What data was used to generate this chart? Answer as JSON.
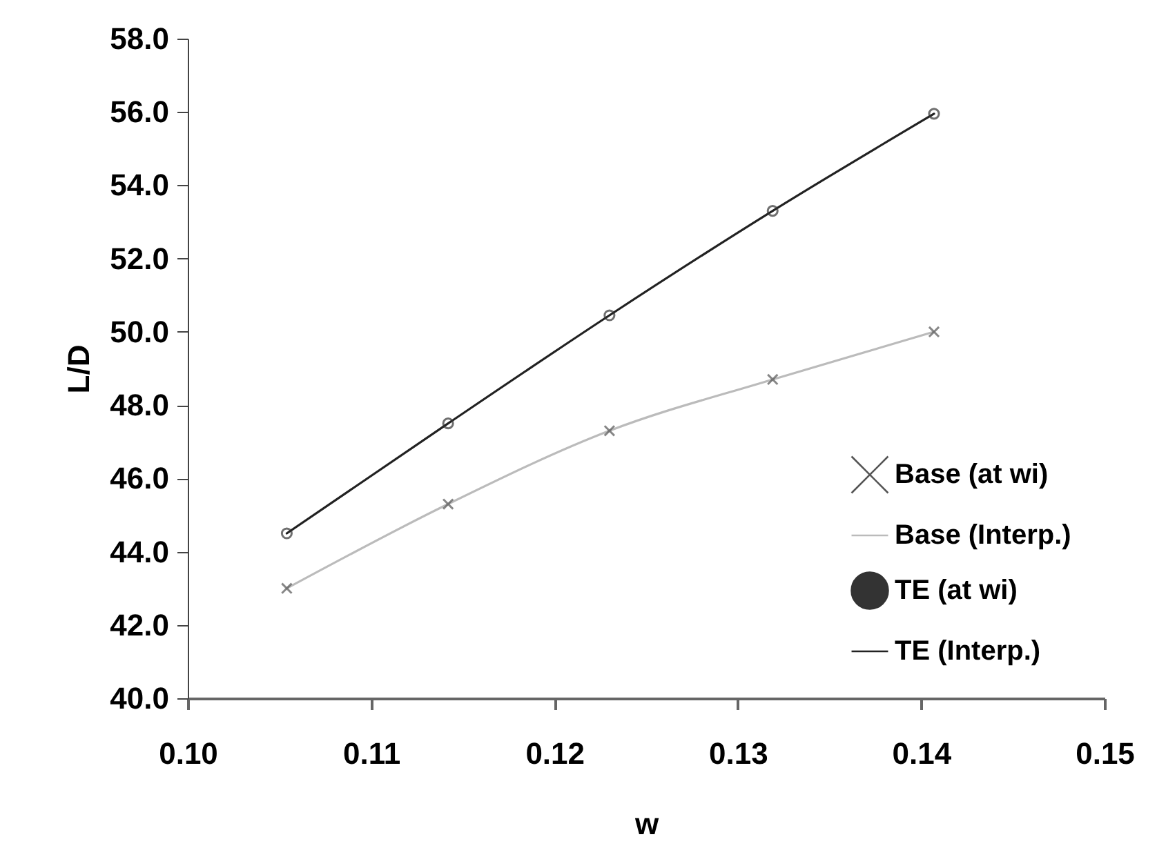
{
  "chart_data": {
    "type": "line",
    "xlabel": "w",
    "ylabel": "L/D",
    "x": [
      0.1054,
      0.1142,
      0.123,
      0.1319,
      0.1407
    ],
    "series": [
      {
        "name": "Base (at wi)",
        "type": "scatter",
        "marker": "cross",
        "color": "#555555",
        "values": [
          43.0,
          45.3,
          47.3,
          48.7,
          50.0
        ]
      },
      {
        "name": "Base (Interp.)",
        "type": "line",
        "color": "#bbbbbb",
        "values": [
          43.0,
          45.3,
          47.3,
          48.7,
          50.0
        ]
      },
      {
        "name": "TE (at wi)",
        "type": "scatter",
        "marker": "circle",
        "color": "#333333",
        "values": [
          44.5,
          47.5,
          50.45,
          53.3,
          55.95
        ]
      },
      {
        "name": "TE (Interp.)",
        "type": "line",
        "color": "#222222",
        "values": [
          44.5,
          47.5,
          50.45,
          53.3,
          55.95
        ]
      }
    ],
    "xlim": [
      0.1,
      0.15
    ],
    "xticks": [
      {
        "value": 0.1,
        "label": "0.10"
      },
      {
        "value": 0.11,
        "label": "0.11"
      },
      {
        "value": 0.12,
        "label": "0.12"
      },
      {
        "value": 0.13,
        "label": "0.13"
      },
      {
        "value": 0.14,
        "label": "0.14"
      },
      {
        "value": 0.15,
        "label": "0.15"
      }
    ],
    "ylim": [
      40,
      58
    ],
    "yticks": [
      {
        "value": 40,
        "label": "40.0"
      },
      {
        "value": 42,
        "label": "42.0"
      },
      {
        "value": 44,
        "label": "44.0"
      },
      {
        "value": 46,
        "label": "46.0"
      },
      {
        "value": 48,
        "label": "48.0"
      },
      {
        "value": 50,
        "label": "50.0"
      },
      {
        "value": 52,
        "label": "52.0"
      },
      {
        "value": 54,
        "label": "54.0"
      },
      {
        "value": 56,
        "label": "56.0"
      },
      {
        "value": 58,
        "label": "58.0"
      }
    ],
    "grid": false,
    "legend": "bottom right"
  }
}
